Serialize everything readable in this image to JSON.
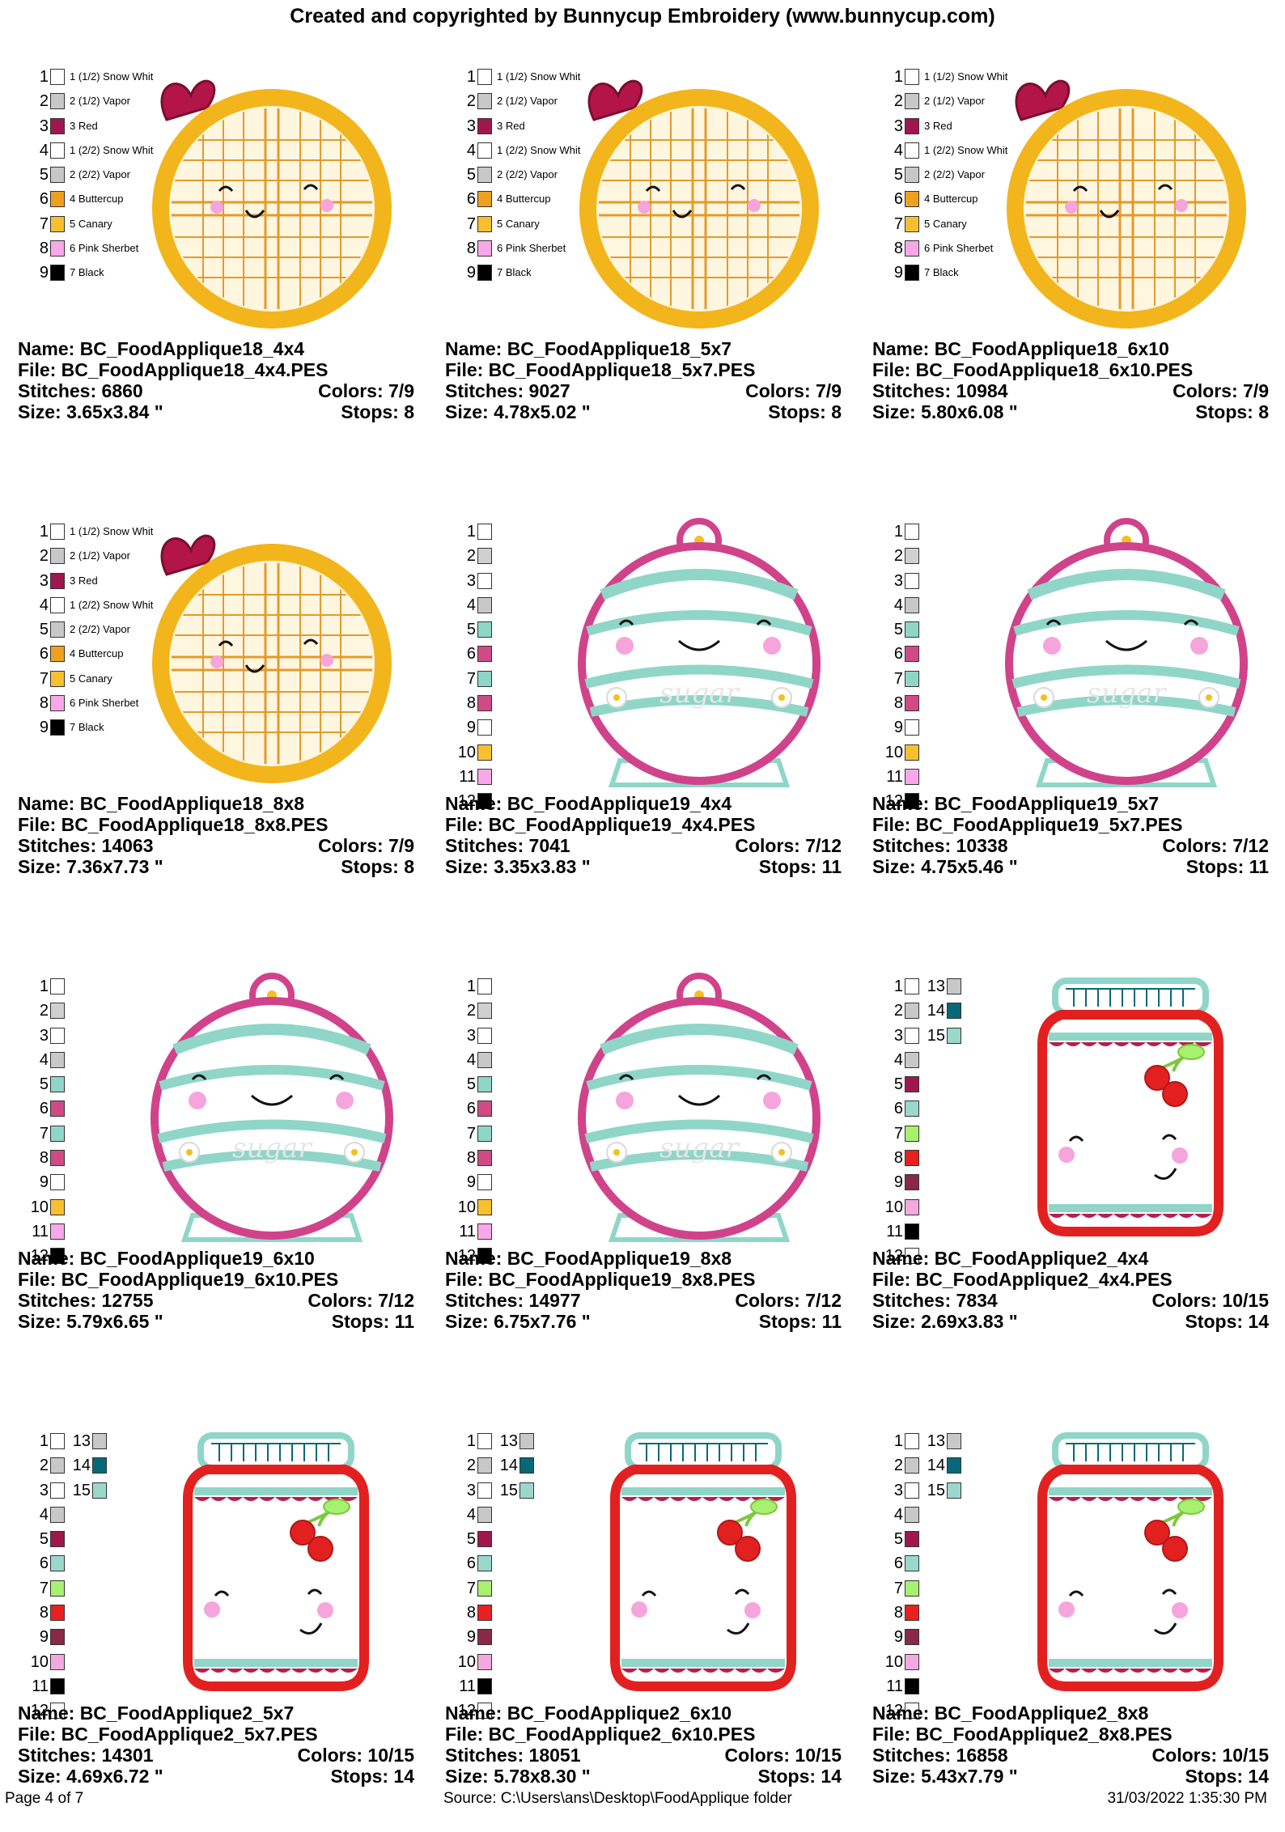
{
  "header": {
    "title": "Created and copyrighted by Bunnycup Embroidery (www.bunnycup.com)"
  },
  "legends": {
    "waffle": [
      {
        "num": "1",
        "color": "#ffffff",
        "name": "1 (1/2) Snow Whit"
      },
      {
        "num": "2",
        "color": "#c8c8c8",
        "name": "2 (1/2) Vapor"
      },
      {
        "num": "3",
        "color": "#a0174e",
        "name": "3 Red"
      },
      {
        "num": "4",
        "color": "#ffffff",
        "name": "1 (2/2) Snow Whit"
      },
      {
        "num": "5",
        "color": "#c8c8c8",
        "name": "2 (2/2) Vapor"
      },
      {
        "num": "6",
        "color": "#f0a020",
        "name": "4 Buttercup"
      },
      {
        "num": "7",
        "color": "#f8c030",
        "name": "5 Canary"
      },
      {
        "num": "8",
        "color": "#f8a8e8",
        "name": "6 Pink Sherbet"
      },
      {
        "num": "9",
        "color": "#000000",
        "name": "7 Black"
      }
    ],
    "jar": [
      {
        "num": "1",
        "color": "#ffffff"
      },
      {
        "num": "2",
        "color": "#d0d0d0"
      },
      {
        "num": "3",
        "color": "#ffffff"
      },
      {
        "num": "4",
        "color": "#c8c8c8"
      },
      {
        "num": "5",
        "color": "#8fd6c8"
      },
      {
        "num": "6",
        "color": "#d04a86"
      },
      {
        "num": "7",
        "color": "#8fd6c8"
      },
      {
        "num": "8",
        "color": "#d04a86"
      },
      {
        "num": "9",
        "color": "#ffffff"
      },
      {
        "num": "10",
        "color": "#f8c030"
      },
      {
        "num": "11",
        "color": "#f8a8e8"
      },
      {
        "num": "12",
        "color": "#000000"
      }
    ],
    "preserve": [
      {
        "num": "1",
        "color": "#ffffff"
      },
      {
        "num": "2",
        "color": "#c8c8c8"
      },
      {
        "num": "3",
        "color": "#ffffff"
      },
      {
        "num": "4",
        "color": "#c8c8c8"
      },
      {
        "num": "5",
        "color": "#a0174e"
      },
      {
        "num": "6",
        "color": "#9ad8cc"
      },
      {
        "num": "7",
        "color": "#a8f070"
      },
      {
        "num": "8",
        "color": "#e82020"
      },
      {
        "num": "9",
        "color": "#8a2848"
      },
      {
        "num": "10",
        "color": "#f4a8e0"
      },
      {
        "num": "11",
        "color": "#000000"
      },
      {
        "num": "12",
        "color": "#ffffff"
      }
    ],
    "preserve_extra": [
      {
        "num": "13",
        "color": "#c8c8c8"
      },
      {
        "num": "14",
        "color": "#086878"
      },
      {
        "num": "15",
        "color": "#9ad8cc"
      }
    ]
  },
  "designs": [
    {
      "name": "Name: BC_FoodApplique18_4x4",
      "file": "File: BC_FoodApplique18_4x4.PES",
      "stitches": "Stitches: 6860",
      "colors": "Colors: 7/9",
      "size": "Size: 3.65x3.84 \"",
      "stops": "Stops: 8"
    },
    {
      "name": "Name: BC_FoodApplique18_5x7",
      "file": "File: BC_FoodApplique18_5x7.PES",
      "stitches": "Stitches: 9027",
      "colors": "Colors: 7/9",
      "size": "Size: 4.78x5.02 \"",
      "stops": "Stops: 8"
    },
    {
      "name": "Name: BC_FoodApplique18_6x10",
      "file": "File: BC_FoodApplique18_6x10.PES",
      "stitches": "Stitches: 10984",
      "colors": "Colors: 7/9",
      "size": "Size: 5.80x6.08 \"",
      "stops": "Stops: 8"
    },
    {
      "name": "Name: BC_FoodApplique18_8x8",
      "file": "File: BC_FoodApplique18_8x8.PES",
      "stitches": "Stitches: 14063",
      "colors": "Colors: 7/9",
      "size": "Size: 7.36x7.73 \"",
      "stops": "Stops: 8"
    },
    {
      "name": "Name: BC_FoodApplique19_4x4",
      "file": "File: BC_FoodApplique19_4x4.PES",
      "stitches": "Stitches: 7041",
      "colors": "Colors: 7/12",
      "size": "Size: 3.35x3.83 \"",
      "stops": "Stops: 11"
    },
    {
      "name": "Name: BC_FoodApplique19_5x7",
      "file": "File: BC_FoodApplique19_5x7.PES",
      "stitches": "Stitches: 10338",
      "colors": "Colors: 7/12",
      "size": "Size: 4.75x5.46 \"",
      "stops": "Stops: 11"
    },
    {
      "name": "Name: BC_FoodApplique19_6x10",
      "file": "File: BC_FoodApplique19_6x10.PES",
      "stitches": "Stitches: 12755",
      "colors": "Colors: 7/12",
      "size": "Size: 5.79x6.65 \"",
      "stops": "Stops: 11"
    },
    {
      "name": "Name: BC_FoodApplique19_8x8",
      "file": "File: BC_FoodApplique19_8x8.PES",
      "stitches": "Stitches: 14977",
      "colors": "Colors: 7/12",
      "size": "Size: 6.75x7.76 \"",
      "stops": "Stops: 11"
    },
    {
      "name": "Name: BC_FoodApplique2_4x4",
      "file": "File: BC_FoodApplique2_4x4.PES",
      "stitches": "Stitches: 7834",
      "colors": "Colors: 10/15",
      "size": "Size: 2.69x3.83 \"",
      "stops": "Stops: 14"
    },
    {
      "name": "Name: BC_FoodApplique2_5x7",
      "file": "File: BC_FoodApplique2_5x7.PES",
      "stitches": "Stitches: 14301",
      "colors": "Colors: 10/15",
      "size": "Size: 4.69x6.72 \"",
      "stops": "Stops: 14"
    },
    {
      "name": "Name: BC_FoodApplique2_6x10",
      "file": "File: BC_FoodApplique2_6x10.PES",
      "stitches": "Stitches: 18051",
      "colors": "Colors: 10/15",
      "size": "Size: 5.78x8.30 \"",
      "stops": "Stops: 14"
    },
    {
      "name": "Name: BC_FoodApplique2_8x8",
      "file": "File: BC_FoodApplique2_8x8.PES",
      "stitches": "Stitches: 16858",
      "colors": "Colors: 10/15",
      "size": "Size: 5.43x7.79 \"",
      "stops": "Stops: 14"
    }
  ],
  "art_text": {
    "sugar": "sugar"
  },
  "footer": {
    "page": "Page 4 of 7",
    "source": "Source: C:\\Users\\ans\\Desktop\\FoodApplique folder",
    "datetime": "31/03/2022 1:35:30 PM"
  }
}
